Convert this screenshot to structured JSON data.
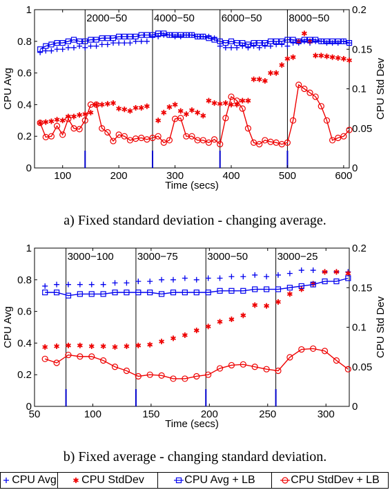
{
  "chart_data": [
    {
      "type": "line",
      "xlabel": "Time (secs)",
      "ylabel": "CPU Avg",
      "y2label": "CPU Std Dev",
      "xlim": [
        50,
        610
      ],
      "ylim": [
        0,
        1
      ],
      "y2lim": [
        0,
        0.2
      ],
      "xticks": [
        "100",
        "200",
        "300",
        "400",
        "500",
        "600"
      ],
      "yticks": [
        "0",
        "0.2",
        "0.4",
        "0.6",
        "0.8",
        "1"
      ],
      "y2ticks": [
        "0",
        "0.05",
        "0.1",
        "0.15",
        "0.2"
      ],
      "phases": [
        {
          "x": 140,
          "label": "2000−50"
        },
        {
          "x": 260,
          "label": "4000−50"
        },
        {
          "x": 380,
          "label": "6000−50"
        },
        {
          "x": 500,
          "label": "8000−50"
        }
      ],
      "series": [
        {
          "key": "cpu_avg",
          "axis": "left",
          "marker": "plus",
          "color": "#0000ee",
          "x": [
            60,
            70,
            80,
            90,
            100,
            110,
            120,
            130,
            140,
            150,
            160,
            170,
            180,
            190,
            200,
            210,
            220,
            230,
            240,
            250,
            260,
            270,
            280,
            290,
            300,
            310,
            320,
            330,
            340,
            350,
            360,
            370,
            380,
            390,
            400,
            410,
            420,
            430,
            440,
            450,
            460,
            470,
            480,
            490,
            500,
            510,
            520,
            530,
            540,
            550,
            560,
            570,
            580,
            590,
            600,
            610
          ],
          "values": [
            0.73,
            0.74,
            0.74,
            0.75,
            0.75,
            0.76,
            0.76,
            0.77,
            0.76,
            0.77,
            0.77,
            0.78,
            0.78,
            0.79,
            0.79,
            0.79,
            0.79,
            0.8,
            0.8,
            0.8,
            0.83,
            0.83,
            0.84,
            0.84,
            0.83,
            0.83,
            0.84,
            0.84,
            0.83,
            0.83,
            0.83,
            0.82,
            0.77,
            0.76,
            0.76,
            0.76,
            0.77,
            0.76,
            0.77,
            0.76,
            0.77,
            0.77,
            0.78,
            0.78,
            0.77,
            0.79,
            0.79,
            0.8,
            0.79,
            0.8,
            0.8,
            0.79,
            0.79,
            0.79,
            0.8,
            0.79
          ]
        },
        {
          "key": "cpu_stddev",
          "axis": "right",
          "marker": "asterisk",
          "color": "#ee0000",
          "x": [
            60,
            70,
            80,
            90,
            100,
            110,
            120,
            130,
            140,
            150,
            160,
            170,
            180,
            190,
            200,
            210,
            220,
            230,
            240,
            250,
            270,
            280,
            290,
            300,
            310,
            320,
            330,
            340,
            350,
            360,
            370,
            380,
            390,
            400,
            410,
            420,
            430,
            440,
            450,
            460,
            470,
            480,
            490,
            500,
            510,
            520,
            530,
            540,
            550,
            560,
            570,
            580,
            590,
            600,
            610
          ],
          "values": [
            0.057,
            0.058,
            0.059,
            0.061,
            0.06,
            0.065,
            0.065,
            0.067,
            0.068,
            0.07,
            0.08,
            0.08,
            0.081,
            0.082,
            0.075,
            0.074,
            0.072,
            0.076,
            0.076,
            0.078,
            0.06,
            0.07,
            0.077,
            0.08,
            0.072,
            0.068,
            0.073,
            0.07,
            0.066,
            0.085,
            0.082,
            0.081,
            0.082,
            0.08,
            0.08,
            0.085,
            0.085,
            0.112,
            0.112,
            0.11,
            0.12,
            0.12,
            0.13,
            0.138,
            0.14,
            0.16,
            0.17,
            0.16,
            0.142,
            0.142,
            0.141,
            0.14,
            0.139,
            0.138,
            0.136
          ]
        },
        {
          "key": "cpu_avg_lb",
          "axis": "left",
          "marker": "square",
          "color": "#0000ee",
          "x": [
            60,
            70,
            80,
            90,
            100,
            110,
            120,
            130,
            140,
            150,
            160,
            170,
            180,
            190,
            200,
            210,
            220,
            230,
            240,
            250,
            260,
            270,
            280,
            290,
            300,
            310,
            320,
            330,
            340,
            350,
            360,
            370,
            380,
            390,
            400,
            410,
            420,
            430,
            440,
            450,
            460,
            470,
            480,
            490,
            500,
            510,
            520,
            530,
            540,
            550,
            560,
            570,
            580,
            590,
            600,
            610
          ],
          "values": [
            0.75,
            0.77,
            0.78,
            0.79,
            0.79,
            0.8,
            0.81,
            0.8,
            0.8,
            0.81,
            0.81,
            0.82,
            0.82,
            0.82,
            0.83,
            0.83,
            0.83,
            0.83,
            0.84,
            0.84,
            0.84,
            0.85,
            0.85,
            0.84,
            0.84,
            0.84,
            0.84,
            0.84,
            0.83,
            0.83,
            0.82,
            0.81,
            0.8,
            0.79,
            0.8,
            0.79,
            0.79,
            0.78,
            0.79,
            0.79,
            0.79,
            0.8,
            0.8,
            0.8,
            0.81,
            0.81,
            0.8,
            0.81,
            0.81,
            0.81,
            0.8,
            0.8,
            0.8,
            0.8,
            0.8,
            0.79
          ]
        },
        {
          "key": "cpu_stddev_lb",
          "axis": "right",
          "marker": "circle",
          "color": "#ee0000",
          "x": [
            60,
            70,
            80,
            90,
            100,
            110,
            120,
            130,
            140,
            150,
            160,
            170,
            180,
            190,
            200,
            210,
            220,
            230,
            240,
            250,
            260,
            270,
            280,
            290,
            300,
            310,
            320,
            330,
            340,
            350,
            360,
            370,
            380,
            390,
            400,
            410,
            420,
            430,
            440,
            450,
            460,
            470,
            480,
            490,
            500,
            510,
            520,
            530,
            540,
            550,
            560,
            570,
            580,
            590,
            600,
            610
          ],
          "values": [
            0.057,
            0.039,
            0.04,
            0.053,
            0.042,
            0.062,
            0.05,
            0.049,
            0.06,
            0.08,
            0.08,
            0.05,
            0.045,
            0.034,
            0.042,
            0.04,
            0.035,
            0.037,
            0.038,
            0.036,
            0.038,
            0.04,
            0.032,
            0.035,
            0.062,
            0.063,
            0.04,
            0.04,
            0.035,
            0.035,
            0.032,
            0.036,
            0.03,
            0.063,
            0.09,
            0.085,
            0.075,
            0.05,
            0.032,
            0.03,
            0.035,
            0.033,
            0.032,
            0.03,
            0.032,
            0.06,
            0.105,
            0.1,
            0.095,
            0.09,
            0.078,
            0.06,
            0.035,
            0.038,
            0.04,
            0.048
          ]
        }
      ]
    },
    {
      "type": "line",
      "xlabel": "Time (secs)",
      "ylabel": "CPU Avg",
      "y2label": "CPU Std Dev",
      "xlim": [
        50,
        320
      ],
      "ylim": [
        0,
        1
      ],
      "y2lim": [
        0,
        0.2
      ],
      "xticks": [
        "50",
        "100",
        "150",
        "200",
        "250",
        "300"
      ],
      "yticks": [
        "0",
        "0.2",
        "0.4",
        "0.6",
        "0.8",
        "1"
      ],
      "y2ticks": [
        "0",
        "0.05",
        "0.1",
        "0.15",
        "0.2"
      ],
      "phases": [
        {
          "x": 77,
          "label": "3000−100"
        },
        {
          "x": 137,
          "label": "3000−75"
        },
        {
          "x": 197,
          "label": "3000−50"
        },
        {
          "x": 257,
          "label": "3000−25"
        }
      ],
      "series": [
        {
          "key": "cpu_avg",
          "axis": "left",
          "marker": "plus",
          "color": "#0000ee",
          "x": [
            59,
            69,
            79,
            89,
            99,
            109,
            119,
            129,
            139,
            149,
            159,
            169,
            179,
            189,
            199,
            209,
            219,
            229,
            239,
            249,
            259,
            269,
            279,
            289,
            299,
            309,
            319
          ],
          "values": [
            0.76,
            0.77,
            0.77,
            0.77,
            0.77,
            0.77,
            0.78,
            0.78,
            0.79,
            0.79,
            0.8,
            0.8,
            0.81,
            0.8,
            0.81,
            0.81,
            0.82,
            0.82,
            0.83,
            0.82,
            0.83,
            0.84,
            0.86,
            0.86,
            0.85,
            0.85,
            0.85
          ]
        },
        {
          "key": "cpu_stddev",
          "axis": "right",
          "marker": "asterisk",
          "color": "#ee0000",
          "x": [
            59,
            69,
            79,
            89,
            99,
            109,
            119,
            129,
            139,
            149,
            159,
            169,
            179,
            189,
            199,
            209,
            219,
            229,
            239,
            249,
            259,
            269,
            279,
            289,
            299,
            309,
            319
          ],
          "values": [
            0.075,
            0.076,
            0.077,
            0.077,
            0.076,
            0.076,
            0.075,
            0.076,
            0.077,
            0.078,
            0.082,
            0.086,
            0.09,
            0.096,
            0.101,
            0.107,
            0.11,
            0.115,
            0.128,
            0.127,
            0.132,
            0.142,
            0.148,
            0.155,
            0.17,
            0.17,
            0.168
          ]
        },
        {
          "key": "cpu_avg_lb",
          "axis": "left",
          "marker": "square",
          "color": "#0000ee",
          "x": [
            59,
            69,
            79,
            89,
            99,
            109,
            119,
            129,
            139,
            149,
            159,
            169,
            179,
            189,
            199,
            209,
            219,
            229,
            239,
            249,
            259,
            269,
            279,
            289,
            299,
            309,
            319
          ],
          "values": [
            0.72,
            0.72,
            0.7,
            0.71,
            0.71,
            0.71,
            0.72,
            0.72,
            0.72,
            0.72,
            0.71,
            0.72,
            0.72,
            0.72,
            0.72,
            0.73,
            0.73,
            0.73,
            0.74,
            0.74,
            0.74,
            0.75,
            0.76,
            0.77,
            0.79,
            0.79,
            0.81
          ]
        },
        {
          "key": "cpu_stddev_lb",
          "axis": "right",
          "marker": "circle",
          "color": "#ee0000",
          "x": [
            59,
            69,
            79,
            89,
            99,
            109,
            119,
            129,
            139,
            149,
            159,
            169,
            179,
            189,
            199,
            209,
            219,
            229,
            239,
            249,
            259,
            269,
            279,
            289,
            299,
            309,
            319
          ],
          "values": [
            0.06,
            0.055,
            0.065,
            0.063,
            0.063,
            0.058,
            0.05,
            0.045,
            0.038,
            0.04,
            0.039,
            0.035,
            0.035,
            0.038,
            0.04,
            0.048,
            0.052,
            0.053,
            0.05,
            0.047,
            0.045,
            0.062,
            0.072,
            0.073,
            0.07,
            0.058,
            0.047
          ]
        }
      ]
    }
  ],
  "captions": {
    "a": "a) Fixed standard deviation - changing average.",
    "b": "b) Fixed average - changing standard deviation."
  },
  "legend": {
    "items": [
      {
        "label": "CPU Avg",
        "marker": "plus",
        "color": "#0000ee"
      },
      {
        "label": "CPU StdDev",
        "marker": "asterisk",
        "color": "#ee0000"
      },
      {
        "label": "CPU Avg + LB",
        "marker": "square",
        "color": "#0000ee"
      },
      {
        "label": "CPU StdDev + LB",
        "marker": "circle",
        "color": "#ee0000"
      }
    ]
  }
}
